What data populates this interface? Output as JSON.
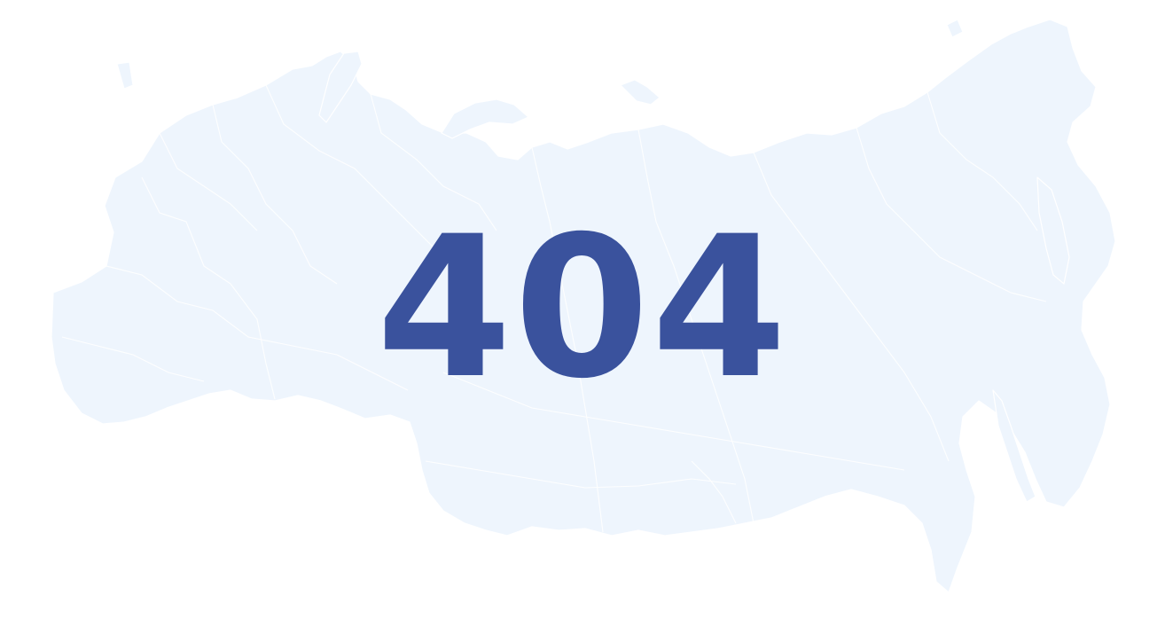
{
  "error": {
    "code": "404"
  },
  "background": {
    "image": "russia-regions-map",
    "fill_color": "#eef5fd",
    "border_color": "#ffffff"
  },
  "colors": {
    "page_background": "#ffffff",
    "code_text": "#3a529d"
  }
}
